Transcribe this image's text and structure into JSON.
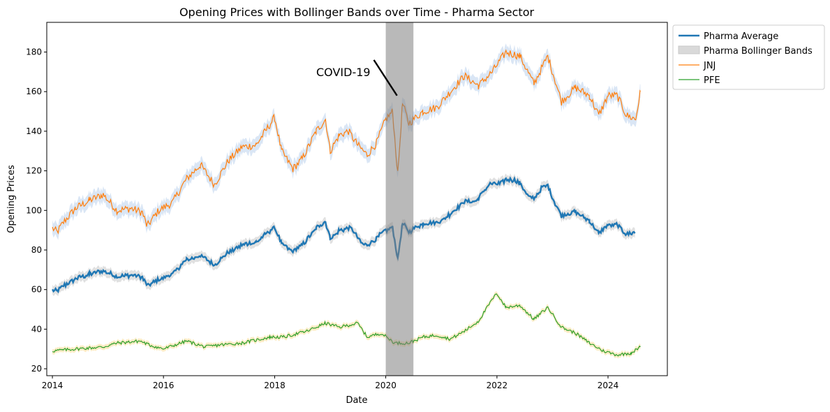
{
  "chart_data": {
    "type": "line",
    "title": "Opening Prices with Bollinger Bands over Time - Pharma Sector",
    "xlabel": "Date",
    "ylabel": "Opening Prices",
    "xlim": [
      "2013-11-25",
      "2025-01-25"
    ],
    "ylim": [
      16.5,
      195
    ],
    "x_ticks": [
      "2014",
      "2016",
      "2018",
      "2020",
      "2022",
      "2024"
    ],
    "y_ticks": [
      20,
      40,
      60,
      80,
      100,
      120,
      140,
      160,
      180
    ],
    "grid": false,
    "legend_position": "outside-upper-right",
    "annotation": {
      "text": "COVID-19",
      "arrow_from": [
        "2019-10-15",
        176
      ],
      "arrow_to": [
        "2020-03-15",
        158
      ]
    },
    "highlight_span": {
      "start": "2020-01-01",
      "end": "2020-07-01",
      "color": "#808080"
    },
    "colors": {
      "average": "#1f77b4",
      "jnj": "#ff7f0e",
      "pfe": "#2ca02c",
      "bands_legend": "#d9d9d9",
      "jnj_band": "#aec7e8",
      "pfe_band": "#ffdf9e"
    },
    "legend": [
      {
        "key": "average",
        "label": "Pharma Average",
        "style": "line-thick"
      },
      {
        "key": "bands",
        "label": "Pharma Bollinger Bands",
        "style": "patch"
      },
      {
        "key": "jnj",
        "label": "JNJ",
        "style": "line-thin"
      },
      {
        "key": "pfe",
        "label": "PFE",
        "style": "line-thin"
      }
    ],
    "series": [
      {
        "name": "JNJ",
        "band_width": 3.5,
        "points": [
          [
            "2014-01-01",
            91
          ],
          [
            "2014-02-01",
            89
          ],
          [
            "2014-03-15",
            94
          ],
          [
            "2014-06-01",
            101
          ],
          [
            "2014-09-01",
            105
          ],
          [
            "2014-12-01",
            108
          ],
          [
            "2015-03-01",
            100
          ],
          [
            "2015-06-01",
            101
          ],
          [
            "2015-08-15",
            99
          ],
          [
            "2015-09-15",
            92
          ],
          [
            "2015-12-01",
            100
          ],
          [
            "2016-03-01",
            104
          ],
          [
            "2016-06-01",
            116
          ],
          [
            "2016-09-01",
            123
          ],
          [
            "2016-12-01",
            113
          ],
          [
            "2017-03-01",
            125
          ],
          [
            "2017-06-01",
            132
          ],
          [
            "2017-09-01",
            133
          ],
          [
            "2017-11-01",
            140
          ],
          [
            "2018-01-01",
            147
          ],
          [
            "2018-02-15",
            130
          ],
          [
            "2018-05-01",
            121
          ],
          [
            "2018-07-01",
            126
          ],
          [
            "2018-10-01",
            140
          ],
          [
            "2018-12-01",
            146
          ],
          [
            "2019-01-01",
            130
          ],
          [
            "2019-03-01",
            138
          ],
          [
            "2019-05-01",
            140
          ],
          [
            "2019-07-01",
            133
          ],
          [
            "2019-09-01",
            128
          ],
          [
            "2019-11-01",
            134
          ],
          [
            "2020-01-01",
            146
          ],
          [
            "2020-02-15",
            150
          ],
          [
            "2020-03-20",
            118
          ],
          [
            "2020-04-20",
            154
          ],
          [
            "2020-06-01",
            144
          ],
          [
            "2020-09-01",
            150
          ],
          [
            "2020-12-01",
            152
          ],
          [
            "2021-03-01",
            160
          ],
          [
            "2021-06-01",
            168
          ],
          [
            "2021-09-01",
            163
          ],
          [
            "2021-12-01",
            170
          ],
          [
            "2022-03-01",
            180
          ],
          [
            "2022-06-01",
            178
          ],
          [
            "2022-09-01",
            164
          ],
          [
            "2022-12-01",
            178
          ],
          [
            "2023-03-01",
            155
          ],
          [
            "2023-06-01",
            162
          ],
          [
            "2023-09-01",
            158
          ],
          [
            "2023-11-01",
            148
          ],
          [
            "2024-01-01",
            158
          ],
          [
            "2024-03-01",
            158
          ],
          [
            "2024-05-01",
            148
          ],
          [
            "2024-07-01",
            146
          ],
          [
            "2024-08-01",
            160
          ]
        ]
      },
      {
        "name": "PFE",
        "band_width": 1.3,
        "points": [
          [
            "2014-01-01",
            29
          ],
          [
            "2014-06-01",
            30
          ],
          [
            "2014-12-01",
            31
          ],
          [
            "2015-03-01",
            33
          ],
          [
            "2015-08-01",
            34
          ],
          [
            "2015-10-01",
            32
          ],
          [
            "2016-01-01",
            30
          ],
          [
            "2016-06-01",
            34
          ],
          [
            "2016-10-01",
            31
          ],
          [
            "2017-01-01",
            32
          ],
          [
            "2017-06-01",
            33
          ],
          [
            "2017-12-01",
            36
          ],
          [
            "2018-03-01",
            36
          ],
          [
            "2018-08-01",
            39
          ],
          [
            "2018-12-01",
            43
          ],
          [
            "2019-03-01",
            41
          ],
          [
            "2019-07-01",
            43
          ],
          [
            "2019-09-01",
            36
          ],
          [
            "2019-12-01",
            38
          ],
          [
            "2020-03-01",
            33
          ],
          [
            "2020-06-01",
            33
          ],
          [
            "2020-09-01",
            36
          ],
          [
            "2020-12-01",
            37
          ],
          [
            "2021-03-01",
            35
          ],
          [
            "2021-06-01",
            39
          ],
          [
            "2021-09-01",
            44
          ],
          [
            "2021-12-01",
            55
          ],
          [
            "2022-01-01",
            58
          ],
          [
            "2022-03-01",
            51
          ],
          [
            "2022-06-01",
            52
          ],
          [
            "2022-09-01",
            45
          ],
          [
            "2022-12-01",
            51
          ],
          [
            "2023-03-01",
            41
          ],
          [
            "2023-06-01",
            38
          ],
          [
            "2023-09-01",
            33
          ],
          [
            "2023-12-01",
            29
          ],
          [
            "2024-03-01",
            27
          ],
          [
            "2024-06-01",
            28
          ],
          [
            "2024-08-01",
            31
          ]
        ]
      }
    ],
    "average_of": [
      "JNJ",
      "PFE"
    ],
    "average_band_width": 2.4
  }
}
